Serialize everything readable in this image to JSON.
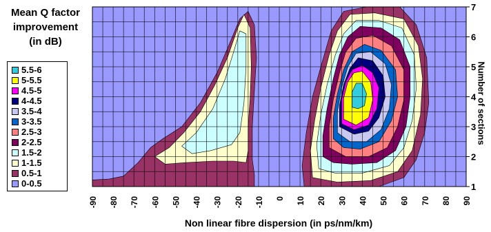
{
  "chart_data": {
    "type": "heatmap",
    "subtype": "filled-contour",
    "title_lines": [
      "Mean Q factor",
      "improvement",
      "(in dB)"
    ],
    "xlabel": "Non linear fibre dispersion (in ps/nm/km)",
    "ylabel": "Number of sections",
    "x_ticks": [
      "-90",
      "-80",
      "-70",
      "-60",
      "-50",
      "-40",
      "-30",
      "-20",
      "-10",
      "0",
      "10",
      "20",
      "30",
      "40",
      "50",
      "60",
      "70",
      "80",
      "90"
    ],
    "y_ticks": [
      "1",
      "2",
      "3",
      "4",
      "5",
      "6",
      "7"
    ],
    "xlim": [
      -90,
      90
    ],
    "ylim": [
      1,
      7
    ],
    "grid": true,
    "legend_position": "left",
    "levels": [
      {
        "label": "5.5-6",
        "color": "#33ccdd"
      },
      {
        "label": "5-5.5",
        "color": "#ffff00"
      },
      {
        "label": "4.5-5",
        "color": "#ff00ff"
      },
      {
        "label": "4-4.5",
        "color": "#000080"
      },
      {
        "label": "3.5-4",
        "color": "#c8c8f0"
      },
      {
        "label": "3-3.5",
        "color": "#0066cc"
      },
      {
        "label": "2.5-3",
        "color": "#ff8080"
      },
      {
        "label": "2-2.5",
        "color": "#800060"
      },
      {
        "label": "1.5-2",
        "color": "#ccffff"
      },
      {
        "label": "1-1.5",
        "color": "#ffffcc"
      },
      {
        "label": "0.5-1",
        "color": "#993366"
      },
      {
        "label": "0-0.5",
        "color": "#9999ff"
      }
    ],
    "regions": [
      {
        "level": "0.5-1",
        "points": [
          [
            -90,
            1
          ],
          [
            -90,
            1.22
          ],
          [
            -82,
            1.25
          ],
          [
            -75,
            1.35
          ],
          [
            -68,
            1.8
          ],
          [
            -62,
            2.3
          ],
          [
            -56,
            2.6
          ],
          [
            -47,
            3.0
          ],
          [
            -38,
            3.8
          ],
          [
            -30,
            4.8
          ],
          [
            -25,
            5.6
          ],
          [
            -19,
            6.6
          ],
          [
            -15,
            6.85
          ],
          [
            -12,
            6.4
          ],
          [
            -11,
            5.3
          ],
          [
            -12,
            4.2
          ],
          [
            -13,
            3.0
          ],
          [
            -13,
            1.9
          ],
          [
            -12,
            1.4
          ],
          [
            -12,
            1.0
          ]
        ]
      },
      {
        "level": "1-1.5",
        "points": [
          [
            -60,
            2.0
          ],
          [
            -53,
            2.3
          ],
          [
            -46,
            2.8
          ],
          [
            -38,
            3.5
          ],
          [
            -31,
            4.4
          ],
          [
            -25,
            5.3
          ],
          [
            -20,
            6.3
          ],
          [
            -17,
            6.75
          ],
          [
            -14,
            6.3
          ],
          [
            -13.5,
            5.0
          ],
          [
            -14,
            4.0
          ],
          [
            -15,
            3.0
          ],
          [
            -15,
            2.2
          ],
          [
            -16,
            1.8
          ],
          [
            -22,
            1.85
          ],
          [
            -32,
            1.85
          ],
          [
            -45,
            1.8
          ],
          [
            -55,
            1.75
          ]
        ]
      },
      {
        "level": "1.5-2",
        "points": [
          [
            -47,
            2.35
          ],
          [
            -40,
            2.8
          ],
          [
            -32,
            3.6
          ],
          [
            -26,
            4.6
          ],
          [
            -22,
            5.5
          ],
          [
            -19,
            6.2
          ],
          [
            -16,
            6.1
          ],
          [
            -16,
            5.0
          ],
          [
            -17,
            3.8
          ],
          [
            -19,
            2.8
          ],
          [
            -23,
            2.4
          ],
          [
            -33,
            2.2
          ],
          [
            -42,
            2.1
          ]
        ]
      },
      {
        "level": "0.5-1",
        "points": [
          [
            12,
            1.0
          ],
          [
            11,
            1.7
          ],
          [
            13,
            2.8
          ],
          [
            16,
            4.0
          ],
          [
            20,
            5.0
          ],
          [
            25,
            6.2
          ],
          [
            31,
            6.85
          ],
          [
            42,
            7.0
          ],
          [
            58,
            7.0
          ],
          [
            66,
            6.4
          ],
          [
            71,
            5.3
          ],
          [
            72,
            3.8
          ],
          [
            70,
            2.8
          ],
          [
            66,
            1.9
          ],
          [
            60,
            1.3
          ],
          [
            48,
            1.0
          ]
        ]
      },
      {
        "level": "1-1.5",
        "points": [
          [
            16,
            1.3
          ],
          [
            15,
            2.2
          ],
          [
            17,
            3.2
          ],
          [
            20,
            4.3
          ],
          [
            24,
            5.4
          ],
          [
            28,
            6.2
          ],
          [
            34,
            6.75
          ],
          [
            46,
            6.8
          ],
          [
            60,
            6.6
          ],
          [
            67,
            5.7
          ],
          [
            69,
            4.6
          ],
          [
            68,
            3.4
          ],
          [
            64,
            2.2
          ],
          [
            57,
            1.5
          ],
          [
            44,
            1.2
          ],
          [
            28,
            1.15
          ]
        ]
      },
      {
        "level": "1.5-2",
        "points": [
          [
            19,
            1.6
          ],
          [
            18,
            2.4
          ],
          [
            20,
            3.4
          ],
          [
            23,
            4.4
          ],
          [
            27,
            5.4
          ],
          [
            31,
            6.1
          ],
          [
            37,
            6.55
          ],
          [
            48,
            6.55
          ],
          [
            59,
            6.3
          ],
          [
            65,
            5.4
          ],
          [
            66,
            4.3
          ],
          [
            64,
            3.2
          ],
          [
            60,
            2.3
          ],
          [
            53,
            1.7
          ],
          [
            40,
            1.45
          ],
          [
            27,
            1.45
          ]
        ]
      },
      {
        "level": "2-2.5",
        "points": [
          [
            21,
            2.0
          ],
          [
            21,
            2.7
          ],
          [
            23,
            3.6
          ],
          [
            26,
            4.6
          ],
          [
            29,
            5.4
          ],
          [
            33,
            6.0
          ],
          [
            39,
            6.35
          ],
          [
            49,
            6.3
          ],
          [
            58,
            5.9
          ],
          [
            63,
            5.0
          ],
          [
            63,
            4.0
          ],
          [
            61,
            3.0
          ],
          [
            56,
            2.2
          ],
          [
            47,
            1.8
          ],
          [
            35,
            1.75
          ],
          [
            26,
            1.8
          ]
        ]
      },
      {
        "level": "2.5-3",
        "points": [
          [
            24,
            2.3
          ],
          [
            24,
            3.0
          ],
          [
            26,
            3.9
          ],
          [
            29,
            4.8
          ],
          [
            32,
            5.5
          ],
          [
            37,
            5.95
          ],
          [
            45,
            6.05
          ],
          [
            54,
            5.7
          ],
          [
            60,
            4.9
          ],
          [
            60,
            3.9
          ],
          [
            57,
            3.0
          ],
          [
            52,
            2.3
          ],
          [
            43,
            2.0
          ],
          [
            32,
            2.0
          ]
        ]
      },
      {
        "level": "3-3.5",
        "points": [
          [
            26,
            2.6
          ],
          [
            26,
            3.3
          ],
          [
            28,
            4.1
          ],
          [
            31,
            4.9
          ],
          [
            35,
            5.5
          ],
          [
            41,
            5.75
          ],
          [
            49,
            5.55
          ],
          [
            56,
            4.9
          ],
          [
            57,
            4.0
          ],
          [
            54,
            3.2
          ],
          [
            48,
            2.5
          ],
          [
            39,
            2.25
          ],
          [
            31,
            2.3
          ]
        ]
      },
      {
        "level": "3.5-4",
        "points": [
          [
            28,
            2.8
          ],
          [
            28,
            3.5
          ],
          [
            30,
            4.3
          ],
          [
            33,
            5.0
          ],
          [
            37,
            5.45
          ],
          [
            44,
            5.5
          ],
          [
            51,
            5.1
          ],
          [
            54,
            4.4
          ],
          [
            53,
            3.6
          ],
          [
            49,
            2.9
          ],
          [
            42,
            2.5
          ],
          [
            34,
            2.5
          ]
        ]
      },
      {
        "level": "4-4.5",
        "points": [
          [
            29,
            3.0
          ],
          [
            29,
            3.7
          ],
          [
            31,
            4.4
          ],
          [
            34,
            4.95
          ],
          [
            38,
            5.3
          ],
          [
            45,
            5.2
          ],
          [
            50,
            4.7
          ],
          [
            51,
            4.0
          ],
          [
            48,
            3.3
          ],
          [
            43,
            2.85
          ],
          [
            36,
            2.75
          ]
        ]
      },
      {
        "level": "4.5-5",
        "points": [
          [
            30,
            3.1
          ],
          [
            30,
            3.9
          ],
          [
            32,
            4.5
          ],
          [
            35,
            4.9
          ],
          [
            40,
            5.05
          ],
          [
            45,
            4.8
          ],
          [
            48,
            4.3
          ],
          [
            47,
            3.6
          ],
          [
            43,
            3.05
          ],
          [
            36,
            2.9
          ]
        ]
      },
      {
        "level": "5-5.5",
        "points": [
          [
            31,
            3.25
          ],
          [
            31,
            3.95
          ],
          [
            33,
            4.5
          ],
          [
            36,
            4.8
          ],
          [
            40,
            4.85
          ],
          [
            44,
            4.5
          ],
          [
            45,
            3.9
          ],
          [
            43,
            3.3
          ],
          [
            37,
            3.05
          ]
        ]
      },
      {
        "level": "5.5-6",
        "points": [
          [
            35,
            3.65
          ],
          [
            35,
            4.15
          ],
          [
            37,
            4.45
          ],
          [
            40,
            4.45
          ],
          [
            42,
            4.1
          ],
          [
            41,
            3.7
          ],
          [
            38,
            3.6
          ]
        ]
      }
    ]
  }
}
